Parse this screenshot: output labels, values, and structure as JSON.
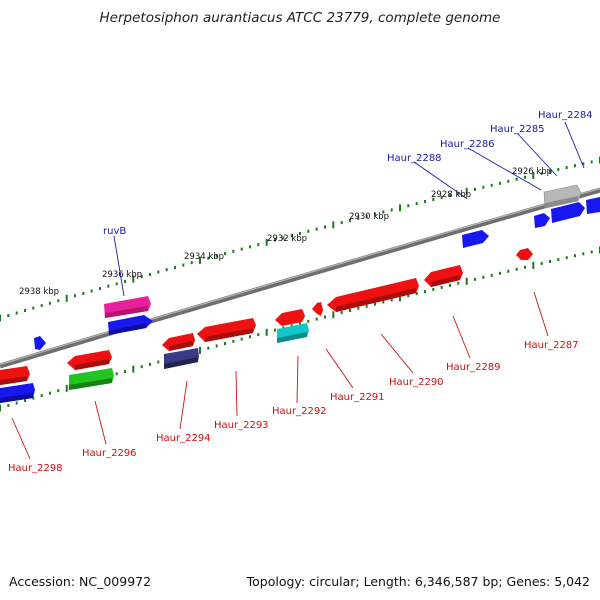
{
  "title": "Herpetosiphon aurantiacus ATCC 23779, complete genome",
  "footer": {
    "accession": "Accession: NC_009972",
    "topology": "Topology: circular; Length: 6,346,587 bp; Genes: 5,042"
  },
  "colors": {
    "backbone": "#7a7a7a",
    "tick_mark": "#1d7a1d",
    "label_forward": "#1a1aa8",
    "label_reverse": "#cc1111",
    "red": "#ee1111",
    "blue": "#1818ee",
    "grey": "#b8b8b8",
    "magenta": "#e8209a",
    "green": "#22c422",
    "navy": "#3a3a8a",
    "cyan": "#10c8c8"
  },
  "scale": {
    "unit": "kbp",
    "ticks": [
      {
        "kbp": 2926,
        "label": "2926 kbp"
      },
      {
        "kbp": 2928,
        "label": "2928 kbp"
      },
      {
        "kbp": 2930,
        "label": "2930 kbp"
      },
      {
        "kbp": 2932,
        "label": "2932 kbp"
      },
      {
        "kbp": 2934,
        "label": "2934 kbp"
      },
      {
        "kbp": 2936,
        "label": "2936 kbp"
      },
      {
        "kbp": 2938,
        "label": "2938 kbp"
      }
    ]
  },
  "genes": [
    {
      "name": "Haur_2284",
      "strand": "+",
      "color": "blue",
      "labeled": true
    },
    {
      "name": "Haur_2285",
      "strand": "+",
      "color": "blue",
      "labeled": true
    },
    {
      "name": "Haur_2286",
      "strand": "+",
      "color": "blue",
      "labeled": true
    },
    {
      "name": "Haur_2288",
      "strand": "+",
      "color": "blue",
      "labeled": true
    },
    {
      "name": "ruvB",
      "strand": "+",
      "color": "magenta",
      "labeled": true
    },
    {
      "name": "Haur_2287",
      "strand": "-",
      "color": "red",
      "labeled": true
    },
    {
      "name": "Haur_2289",
      "strand": "-",
      "color": "red",
      "labeled": true
    },
    {
      "name": "Haur_2290",
      "strand": "-",
      "color": "red",
      "labeled": true
    },
    {
      "name": "Haur_2291",
      "strand": "-",
      "color": "red",
      "labeled": true
    },
    {
      "name": "Haur_2292",
      "strand": "-",
      "color": "cyan",
      "labeled": true
    },
    {
      "name": "Haur_2293",
      "strand": "-",
      "color": "red",
      "labeled": true
    },
    {
      "name": "Haur_2294",
      "strand": "-",
      "color": "navy",
      "labeled": true
    },
    {
      "name": "Haur_2296",
      "strand": "-",
      "color": "green",
      "labeled": true
    },
    {
      "name": "Haur_2298",
      "strand": "-",
      "color": "blue",
      "labeled": true
    }
  ]
}
